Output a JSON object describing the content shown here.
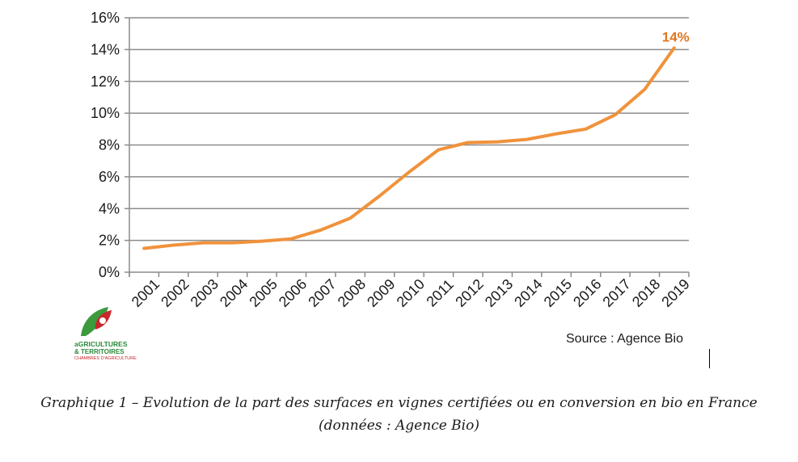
{
  "chart_data": {
    "type": "line",
    "x": [
      "2001",
      "2002",
      "2003",
      "2004",
      "2005",
      "2006",
      "2007",
      "2008",
      "2009",
      "2010",
      "2011",
      "2012",
      "2013",
      "2014",
      "2015",
      "2016",
      "2017",
      "2018",
      "2019"
    ],
    "x_tick_labels": [
      "2001",
      "2002",
      "2003",
      "2004",
      "2005",
      "2006",
      "2007",
      "2008",
      "2009",
      "2010",
      "2011",
      "2012",
      "2013",
      "2014",
      "2015",
      "2016",
      "2017",
      "2018",
      "2019"
    ],
    "series": [
      {
        "name": "",
        "values": [
          1.5,
          1.7,
          1.85,
          1.85,
          1.95,
          2.1,
          2.65,
          3.4,
          4.8,
          6.3,
          7.7,
          8.15,
          8.2,
          8.35,
          8.7,
          9.0,
          9.9,
          11.5,
          14.1
        ]
      }
    ],
    "ylim": [
      0,
      16
    ],
    "y_ticks": [
      0,
      2,
      4,
      6,
      8,
      10,
      12,
      14,
      16
    ],
    "y_tick_labels": [
      "0%",
      "2%",
      "4%",
      "6%",
      "8%",
      "10%",
      "12%",
      "14%",
      "16%"
    ],
    "grid": true,
    "line_color": "#f0923c",
    "grid_color": "#8c8c8c",
    "end_label": "14%",
    "end_label_color": "#e0761e",
    "title": "",
    "xlabel": "",
    "ylabel": ""
  },
  "source": "Source : Agence Bio",
  "caption": {
    "line1": "Graphique 1 – Evolution de la part des surfaces en vignes certifiées ou en conversion en bio en France",
    "line2": "(données : Agence Bio)"
  },
  "logo": {
    "line1": "aGRICULTURES",
    "line2": "& TERRITOIRES",
    "line3": "CHAMBRES D'AGRICULTURE",
    "green": "#3a9a3c",
    "red": "#c8282d"
  }
}
